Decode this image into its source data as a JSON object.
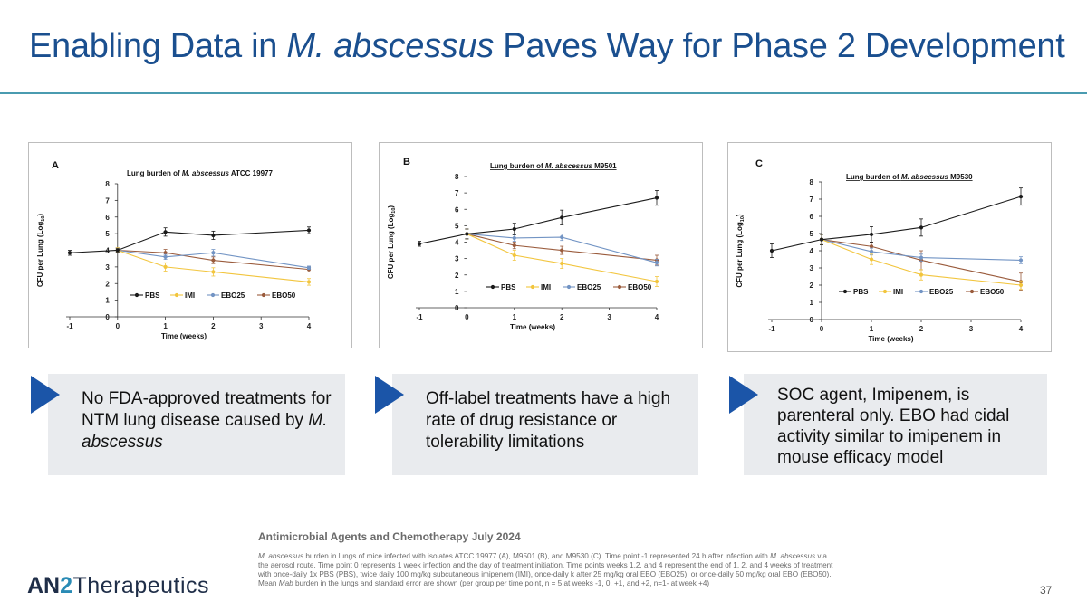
{
  "title": {
    "prefix": "Enabling Data in ",
    "italic": "M. abscessus",
    "suffix": " Paves Way for Phase 2 Development"
  },
  "colors": {
    "PBS": "#1a1a1a",
    "IMI": "#f2c53d",
    "EBO25": "#7294c4",
    "EBO50": "#9a5b3c",
    "accent": "#1b55a8"
  },
  "legend": [
    "PBS",
    "IMI",
    "EBO25",
    "EBO50"
  ],
  "chart_data": [
    {
      "type": "line",
      "panel_label": "A",
      "title_prefix": "Lung burden of ",
      "title_italic": "M. abscessus",
      "title_suffix": " ATCC 19977",
      "xlabel": "Time (weeks)",
      "ylabel_main": "CFU per Lung (Log",
      "ylabel_sub": "10",
      "ylabel_end": ")",
      "xlim": [
        -1,
        4
      ],
      "ylim": [
        0,
        8
      ],
      "xticks": [
        -1,
        0,
        1,
        2,
        3,
        4
      ],
      "yticks": [
        0,
        1,
        2,
        3,
        4,
        5,
        6,
        7,
        8
      ],
      "legend_position": "bottom",
      "series": [
        {
          "name": "PBS",
          "x": [
            -1,
            0,
            1,
            2,
            4
          ],
          "y": [
            3.85,
            4.0,
            5.1,
            4.9,
            5.2
          ],
          "err": [
            0.15,
            0.1,
            0.25,
            0.25,
            0.2
          ]
        },
        {
          "name": "IMI",
          "x": [
            0,
            1,
            2,
            4
          ],
          "y": [
            4.0,
            3.0,
            2.7,
            2.1
          ],
          "err": [
            0.15,
            0.25,
            0.25,
            0.2
          ]
        },
        {
          "name": "EBO25",
          "x": [
            0,
            1,
            2,
            4
          ],
          "y": [
            4.0,
            3.6,
            3.85,
            2.95
          ],
          "err": [
            0.15,
            0.15,
            0.2,
            0.1
          ]
        },
        {
          "name": "EBO50",
          "x": [
            0,
            1,
            2,
            4
          ],
          "y": [
            4.0,
            3.85,
            3.4,
            2.85
          ],
          "err": [
            0.15,
            0.2,
            0.2,
            0.15
          ]
        }
      ]
    },
    {
      "type": "line",
      "panel_label": "B",
      "title_prefix": "Lung burden of ",
      "title_italic": "M. abscessus",
      "title_suffix": " M9501",
      "xlabel": "Time (weeks)",
      "ylabel_main": "CFU per Lung (Log",
      "ylabel_sub": "10",
      "ylabel_end": ")",
      "xlim": [
        -1,
        4
      ],
      "ylim": [
        0,
        8
      ],
      "xticks": [
        -1,
        0,
        1,
        2,
        3,
        4
      ],
      "yticks": [
        0,
        1,
        2,
        3,
        4,
        5,
        6,
        7,
        8
      ],
      "legend_position": "bottom",
      "series": [
        {
          "name": "PBS",
          "x": [
            -1,
            0,
            1,
            2,
            4
          ],
          "y": [
            3.9,
            4.5,
            4.8,
            5.5,
            6.7
          ],
          "err": [
            0.15,
            0.3,
            0.35,
            0.45,
            0.45
          ]
        },
        {
          "name": "IMI",
          "x": [
            0,
            1,
            2,
            4
          ],
          "y": [
            4.5,
            3.2,
            2.7,
            1.6
          ],
          "err": [
            0.3,
            0.3,
            0.3,
            0.3
          ]
        },
        {
          "name": "EBO25",
          "x": [
            0,
            1,
            2,
            4
          ],
          "y": [
            4.5,
            4.25,
            4.3,
            2.75
          ],
          "err": [
            0.3,
            0.2,
            0.2,
            0.2
          ]
        },
        {
          "name": "EBO50",
          "x": [
            0,
            1,
            2,
            4
          ],
          "y": [
            4.5,
            3.8,
            3.5,
            2.9
          ],
          "err": [
            0.3,
            0.2,
            0.25,
            0.3
          ]
        }
      ]
    },
    {
      "type": "line",
      "panel_label": "C",
      "title_prefix": "Lung burden of  ",
      "title_italic": "M. abscessus",
      "title_suffix": " M9530",
      "xlabel": "Time (weeks)",
      "ylabel_main": "CFU per Lung (Log",
      "ylabel_sub": "10",
      "ylabel_end": ")",
      "xlim": [
        -1,
        4
      ],
      "ylim": [
        0,
        8
      ],
      "xticks": [
        -1,
        0,
        1,
        2,
        3,
        4
      ],
      "yticks": [
        0,
        1,
        2,
        3,
        4,
        5,
        6,
        7,
        8
      ],
      "legend_position": "bottom",
      "series": [
        {
          "name": "PBS",
          "x": [
            -1,
            0,
            1,
            2,
            4
          ],
          "y": [
            4.0,
            4.65,
            4.95,
            5.35,
            7.15
          ],
          "err": [
            0.4,
            0.3,
            0.45,
            0.5,
            0.5
          ]
        },
        {
          "name": "IMI",
          "x": [
            0,
            1,
            2,
            4
          ],
          "y": [
            4.65,
            3.5,
            2.6,
            2.0
          ],
          "err": [
            0.3,
            0.3,
            0.3,
            0.25
          ]
        },
        {
          "name": "EBO25",
          "x": [
            0,
            1,
            2,
            4
          ],
          "y": [
            4.65,
            3.95,
            3.6,
            3.45
          ],
          "err": [
            0.3,
            0.2,
            0.2,
            0.2
          ]
        },
        {
          "name": "EBO50",
          "x": [
            0,
            1,
            2,
            4
          ],
          "y": [
            4.65,
            4.25,
            3.45,
            2.2
          ],
          "err": [
            0.3,
            0.25,
            0.55,
            0.5
          ]
        }
      ]
    }
  ],
  "callouts": [
    {
      "parts": [
        {
          "text": "No FDA-approved treatments for NTM lung disease caused by "
        },
        {
          "text": "M. abscessus",
          "italic": true
        }
      ]
    },
    {
      "parts": [
        {
          "text": "Off-label treatments have a high rate of drug resistance or tolerability limitations"
        }
      ]
    },
    {
      "parts": [
        {
          "text": "SOC agent, Imipenem, is parenteral only. EBO had cidal activity similar to imipenem in mouse efficacy model"
        }
      ]
    }
  ],
  "citation": "Antimicrobial Agents and Chemotherapy July 2024",
  "footnote": [
    {
      "text": "M. abscessus",
      "italic": true
    },
    {
      "text": " burden in lungs of mice infected with isolates ATCC 19977 (A), M9501 (B), and M9530 (C).  Time point -1 represented 24 h after infection with "
    },
    {
      "text": "M. abscessus",
      "italic": true
    },
    {
      "text": " via the aerosol route.  Time point 0 represents 1 week infection and the day of treatment initiation. Time points weeks 1,2, and 4 represent the end of 1, 2, and 4 weeks of treatment with once-daily 1x PBS (PBS), twice daily 100 mg/kg subcutaneous imipenem (IMI), once-daily k after 25 mg/kg oral EBO (EBO25), or once-daily 50 mg/kg oral EBO (EBO50).  Mean "
    },
    {
      "text": "Mab",
      "italic": true
    },
    {
      "text": " burden in the lungs and standard error are shown (per group per time point, n = 5 at weeks -1, 0, +1, and +2, n=1- at week +4)"
    }
  ],
  "logo": {
    "part1": "AN",
    "part2": "2",
    "part3": "Therapeutics"
  },
  "page_number": "37"
}
